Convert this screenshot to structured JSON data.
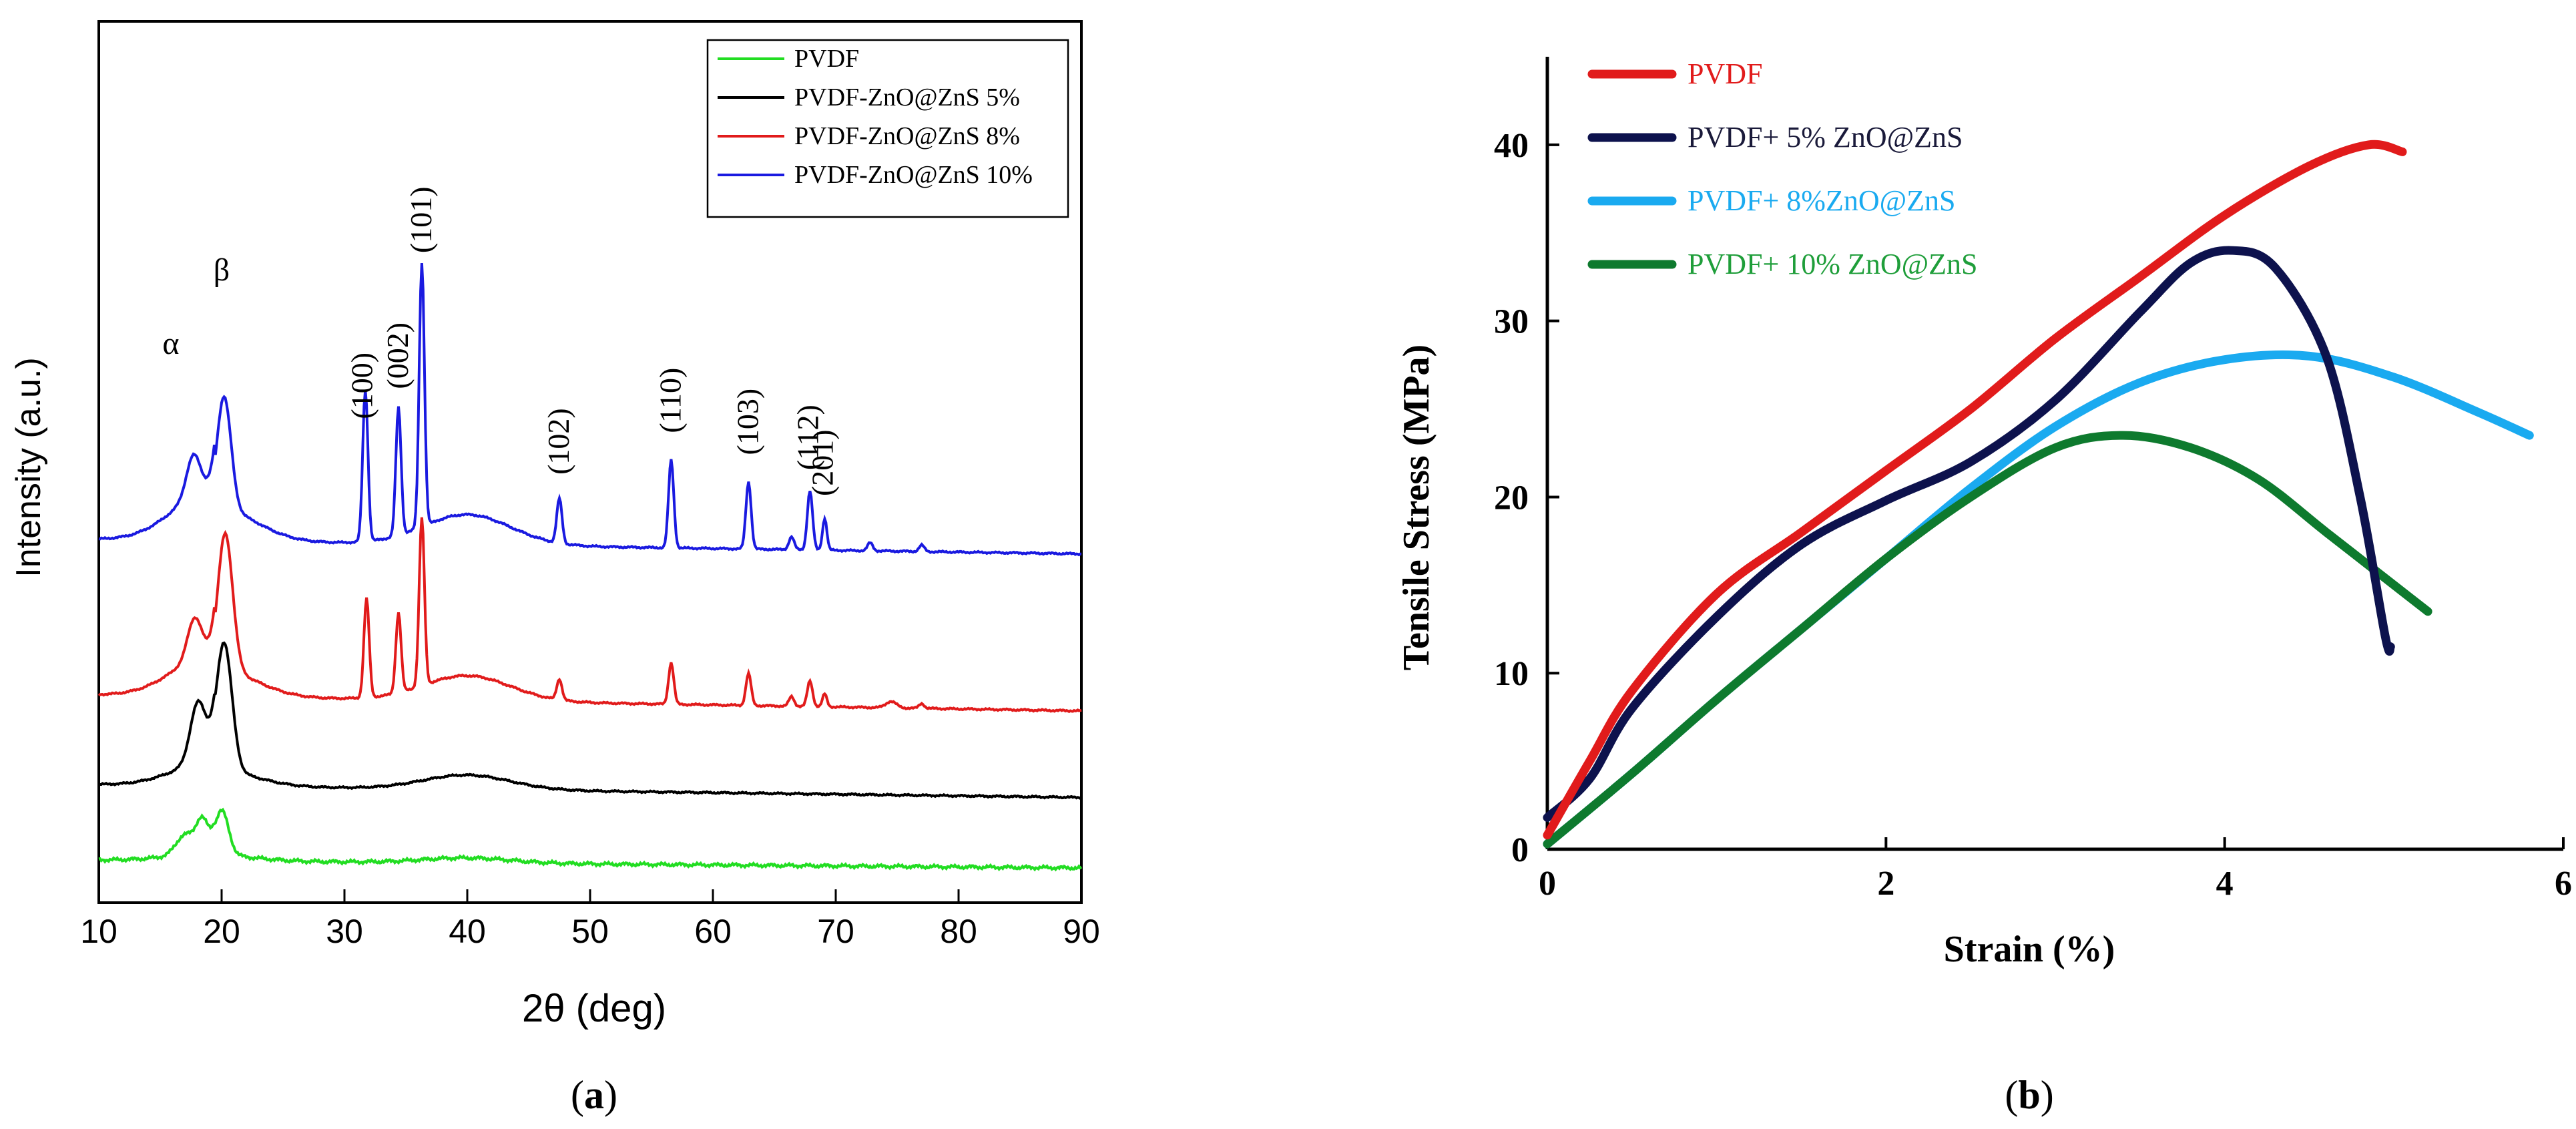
{
  "chart_data": [
    {
      "type": "line",
      "panel_label_pre": "(",
      "panel_label_letter": "a",
      "panel_label_post": ")",
      "xlabel": "2θ (deg)",
      "ylabel": "Intensity (a.u.)",
      "xlim": [
        10,
        90
      ],
      "xticks": [
        10,
        20,
        30,
        40,
        50,
        60,
        70,
        80,
        90
      ],
      "yaxis_ticks": false,
      "legend_position": "top-right",
      "legend": [
        {
          "name": "PVDF",
          "color": "#22dd22"
        },
        {
          "name": "PVDF-ZnO@ZnS 5%",
          "color": "#000000"
        },
        {
          "name": "PVDF-ZnO@ZnS 8%",
          "color": "#e11b1b"
        },
        {
          "name": "PVDF-ZnO@ZnS 10%",
          "color": "#1a1ae0"
        }
      ],
      "phase_labels": [
        {
          "text": "α",
          "x": 17.5
        },
        {
          "text": "β",
          "x": 20.0
        }
      ],
      "peak_labels": [
        {
          "text": "(100)",
          "x": 31.5
        },
        {
          "text": "(002)",
          "x": 34.4
        },
        {
          "text": "(101)",
          "x": 36.3
        },
        {
          "text": "(102)",
          "x": 47.5
        },
        {
          "text": "(110)",
          "x": 56.6
        },
        {
          "text": "(103)",
          "x": 62.9
        },
        {
          "text": "(112)",
          "x": 67.8
        },
        {
          "text": "(201)",
          "x": 69.0
        }
      ],
      "series": [
        {
          "name": "PVDF-ZnO@ZnS 10%",
          "color": "#1a1ae0",
          "offset": 2.05,
          "amorphous": 0.42,
          "drift": 0.09,
          "peaks": [
            [
              17.7,
              0.25,
              0.8
            ],
            [
              20.2,
              0.7,
              0.8
            ],
            [
              31.7,
              0.95,
              0.3
            ],
            [
              34.4,
              0.8,
              0.3
            ],
            [
              36.3,
              1.65,
              0.3
            ],
            [
              47.5,
              0.28,
              0.3
            ],
            [
              56.6,
              0.55,
              0.3
            ],
            [
              62.9,
              0.42,
              0.3
            ],
            [
              66.4,
              0.08,
              0.3
            ],
            [
              67.9,
              0.37,
              0.3
            ],
            [
              69.1,
              0.2,
              0.25
            ],
            [
              72.8,
              0.05,
              0.3
            ],
            [
              77.0,
              0.04,
              0.3
            ]
          ]
        },
        {
          "name": "PVDF-ZnO@ZnS 8%",
          "color": "#e11b1b",
          "offset": 1.08,
          "amorphous": 0.35,
          "drift": 0.1,
          "peaks": [
            [
              17.8,
              0.25,
              0.8
            ],
            [
              20.3,
              0.85,
              0.85
            ],
            [
              31.8,
              0.62,
              0.3
            ],
            [
              34.4,
              0.5,
              0.3
            ],
            [
              36.3,
              1.05,
              0.3
            ],
            [
              47.5,
              0.13,
              0.3
            ],
            [
              56.6,
              0.26,
              0.3
            ],
            [
              62.9,
              0.2,
              0.3
            ],
            [
              66.4,
              0.06,
              0.3
            ],
            [
              67.9,
              0.16,
              0.3
            ],
            [
              69.1,
              0.08,
              0.25
            ],
            [
              74.5,
              0.04,
              0.6
            ],
            [
              77.0,
              0.03,
              0.3
            ]
          ]
        },
        {
          "name": "PVDF-ZnO@ZnS 5%",
          "color": "#000000",
          "offset": 0.52,
          "amorphous": 0.2,
          "drift": 0.08,
          "peaks": [
            [
              18.1,
              0.38,
              0.9
            ],
            [
              20.2,
              0.8,
              0.9
            ]
          ]
        },
        {
          "name": "PVDF",
          "color": "#22dd22",
          "offset": 0.05,
          "amorphous": 0.07,
          "drift": 0.05,
          "peaks": [
            [
              17.0,
              0.12,
              1.0
            ],
            [
              18.4,
              0.2,
              0.7
            ],
            [
              20.0,
              0.28,
              0.8
            ]
          ]
        }
      ]
    },
    {
      "type": "line",
      "panel_label_pre": "(",
      "panel_label_letter": "b",
      "panel_label_post": ")",
      "xlabel": "Strain (%)",
      "ylabel": "Tensile Stress (MPa)",
      "xlim": [
        0,
        6
      ],
      "ylim": [
        0,
        45
      ],
      "xticks": [
        0,
        2,
        4,
        6
      ],
      "yticks": [
        0,
        10,
        20,
        30,
        40
      ],
      "legend_position": "top-left",
      "series": [
        {
          "name": "PVDF",
          "color": "#e11b1b",
          "points": [
            [
              0,
              0.8
            ],
            [
              0.25,
              5
            ],
            [
              0.5,
              9
            ],
            [
              1,
              14.5
            ],
            [
              1.5,
              18
            ],
            [
              2,
              21.5
            ],
            [
              2.5,
              25
            ],
            [
              3,
              29
            ],
            [
              3.5,
              32.5
            ],
            [
              4,
              36
            ],
            [
              4.5,
              38.8
            ],
            [
              4.85,
              40
            ],
            [
              5.05,
              39.6
            ]
          ]
        },
        {
          "name": "PVDF+ 5% ZnO@ZnS",
          "color": "#0d124d",
          "points": [
            [
              0,
              1.8
            ],
            [
              0.25,
              4
            ],
            [
              0.5,
              8
            ],
            [
              1,
              13.2
            ],
            [
              1.5,
              17.3
            ],
            [
              2,
              19.8
            ],
            [
              2.5,
              22
            ],
            [
              3,
              25.5
            ],
            [
              3.5,
              30.5
            ],
            [
              3.8,
              33.3
            ],
            [
              4.05,
              34
            ],
            [
              4.3,
              33
            ],
            [
              4.6,
              28
            ],
            [
              4.8,
              20
            ],
            [
              4.95,
              12
            ],
            [
              4.98,
              11.5
            ]
          ]
        },
        {
          "name": "PVDF+ 8%ZnO@ZnS",
          "color": "#1aaaf0",
          "points": [
            [
              0,
              0.3
            ],
            [
              0.5,
              4.3
            ],
            [
              1,
              8.5
            ],
            [
              1.5,
              12.5
            ],
            [
              2,
              16.5
            ],
            [
              2.5,
              20.5
            ],
            [
              3,
              24
            ],
            [
              3.5,
              26.5
            ],
            [
              4,
              27.8
            ],
            [
              4.5,
              28
            ],
            [
              5,
              26.8
            ],
            [
              5.5,
              24.8
            ],
            [
              5.8,
              23.5
            ]
          ]
        },
        {
          "name": "PVDF+ 10% ZnO@ZnS",
          "color": "#0e7a2e",
          "points": [
            [
              0,
              0.3
            ],
            [
              0.5,
              4.3
            ],
            [
              1,
              8.5
            ],
            [
              1.5,
              12.5
            ],
            [
              2,
              16.5
            ],
            [
              2.5,
              20
            ],
            [
              3,
              22.8
            ],
            [
              3.4,
              23.5
            ],
            [
              3.8,
              22.8
            ],
            [
              4.2,
              21
            ],
            [
              4.6,
              18
            ],
            [
              5,
              15
            ],
            [
              5.2,
              13.5
            ]
          ]
        }
      ]
    }
  ]
}
